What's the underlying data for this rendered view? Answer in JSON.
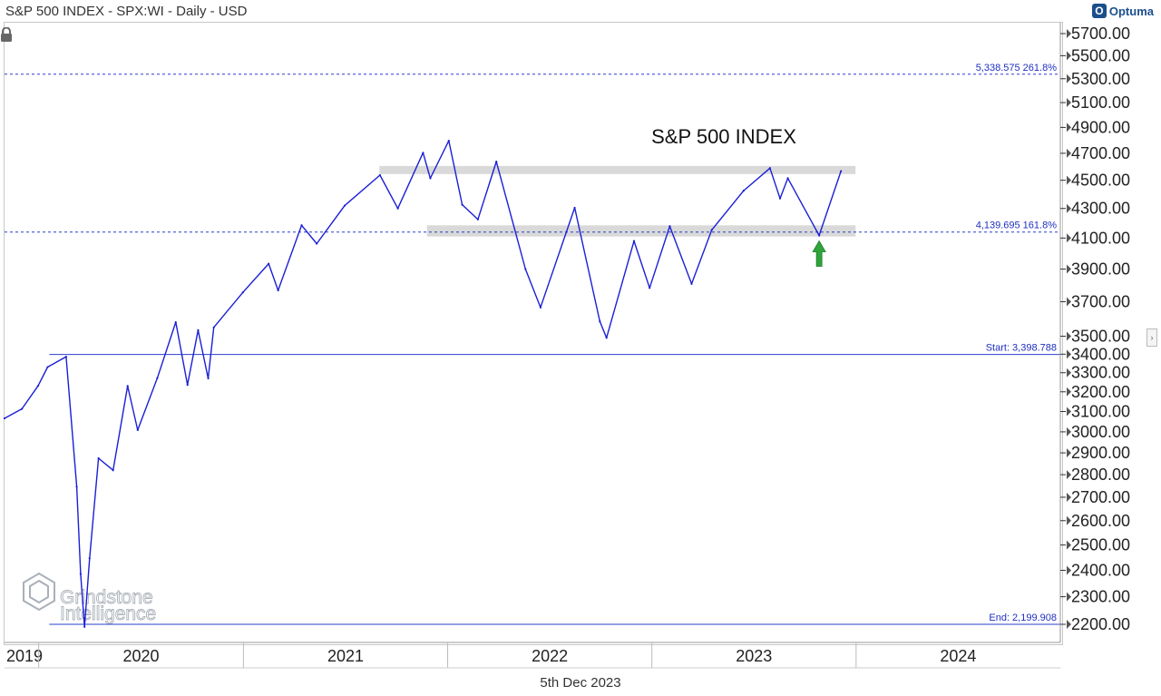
{
  "header": {
    "title": "S&P 500 INDEX - SPX:WI - Daily - USD",
    "brand": "Optuma"
  },
  "footer": {
    "date": "5th Dec 2023"
  },
  "watermark": {
    "line1": "Grindstone",
    "line2": "Intelligence"
  },
  "colors": {
    "price": "#1a1fd6",
    "fib_line": "#2b3fcf",
    "band": "#d9d9d9",
    "arrow": "#2ea43a",
    "text": "#222222"
  },
  "chart_data": {
    "type": "line",
    "title": "S&P 500 INDEX",
    "scale": "log",
    "ylim": [
      2180,
      5780
    ],
    "y_ticks": [
      5700,
      5500,
      5300,
      5100,
      4900,
      4700,
      4500,
      4300,
      4100,
      3900,
      3700,
      3500,
      3400,
      3300,
      3200,
      3100,
      3000,
      2900,
      2800,
      2700,
      2600,
      2500,
      2400,
      2300,
      2200
    ],
    "y_tick_labels": [
      "5700.00",
      "5500.00",
      "5300.00",
      "5100.00",
      "4900.00",
      "4700.00",
      "4500.00",
      "4300.00",
      "4100.00",
      "3900.00",
      "3700.00",
      "3500.00",
      "3400.00",
      "3300.00",
      "3200.00",
      "3100.00",
      "3000.00",
      "2900.00",
      "2800.00",
      "2700.00",
      "2600.00",
      "2500.00",
      "2400.00",
      "2300.00",
      "2200.00"
    ],
    "x_range": [
      "2019-11-01",
      "2024-12-31"
    ],
    "x_tick_labels": [
      "2019",
      "2020",
      "2021",
      "2022",
      "2023",
      "2024"
    ],
    "series": [
      {
        "x": [
          "2019-11-01",
          "2019-12-02",
          "2019-12-31",
          "2020-01-17",
          "2020-02-19",
          "2020-03-09",
          "2020-03-16",
          "2020-03-23",
          "2020-04-01",
          "2020-04-17",
          "2020-05-13",
          "2020-06-08",
          "2020-06-26",
          "2020-07-31",
          "2020-09-02",
          "2020-09-23",
          "2020-10-12",
          "2020-10-30",
          "2020-11-09",
          "2020-12-31",
          "2021-02-15",
          "2021-03-04",
          "2021-04-15",
          "2021-05-12",
          "2021-07-01",
          "2021-09-02",
          "2021-10-04",
          "2021-11-18",
          "2021-12-01",
          "2022-01-03",
          "2022-01-27",
          "2022-02-24",
          "2022-03-29",
          "2022-05-20",
          "2022-06-16",
          "2022-08-16",
          "2022-09-30",
          "2022-10-12",
          "2022-11-30",
          "2022-12-28",
          "2023-02-02",
          "2023-03-13",
          "2023-04-18",
          "2023-06-14",
          "2023-07-31",
          "2023-08-18",
          "2023-09-01",
          "2023-10-27",
          "2023-12-05"
        ],
        "values": [
          3066,
          3113,
          3231,
          3330,
          3386,
          2746,
          2386,
          2191,
          2447,
          2875,
          2820,
          3230,
          3009,
          3271,
          3580,
          3236,
          3534,
          3270,
          3550,
          3756,
          3934,
          3768,
          4185,
          4063,
          4320,
          4537,
          4300,
          4704,
          4514,
          4796,
          4326,
          4225,
          4637,
          3900,
          3666,
          4305,
          3585,
          3491,
          4080,
          3783,
          4179,
          3808,
          4154,
          4425,
          4589,
          4370,
          4515,
          4117,
          4567
        ]
      }
    ],
    "levels": [
      {
        "label": "5,338.575   261.8%",
        "value": 5338.575
      },
      {
        "label": "4,139.695   161.8%",
        "value": 4139.695
      },
      {
        "label": "Start:   3,398.788",
        "value": 3398.788
      },
      {
        "label": "End:   2,199.908",
        "value": 2199.908
      }
    ],
    "resistance_band": {
      "low": 4545,
      "high": 4605,
      "from": "2021-09-01",
      "to": "2023-12-31"
    },
    "support_band": {
      "low": 4110,
      "high": 4185,
      "from": "2021-11-25",
      "to": "2023-12-31"
    },
    "arrow_annotation": {
      "x": "2023-10-27",
      "value": 4117
    }
  }
}
